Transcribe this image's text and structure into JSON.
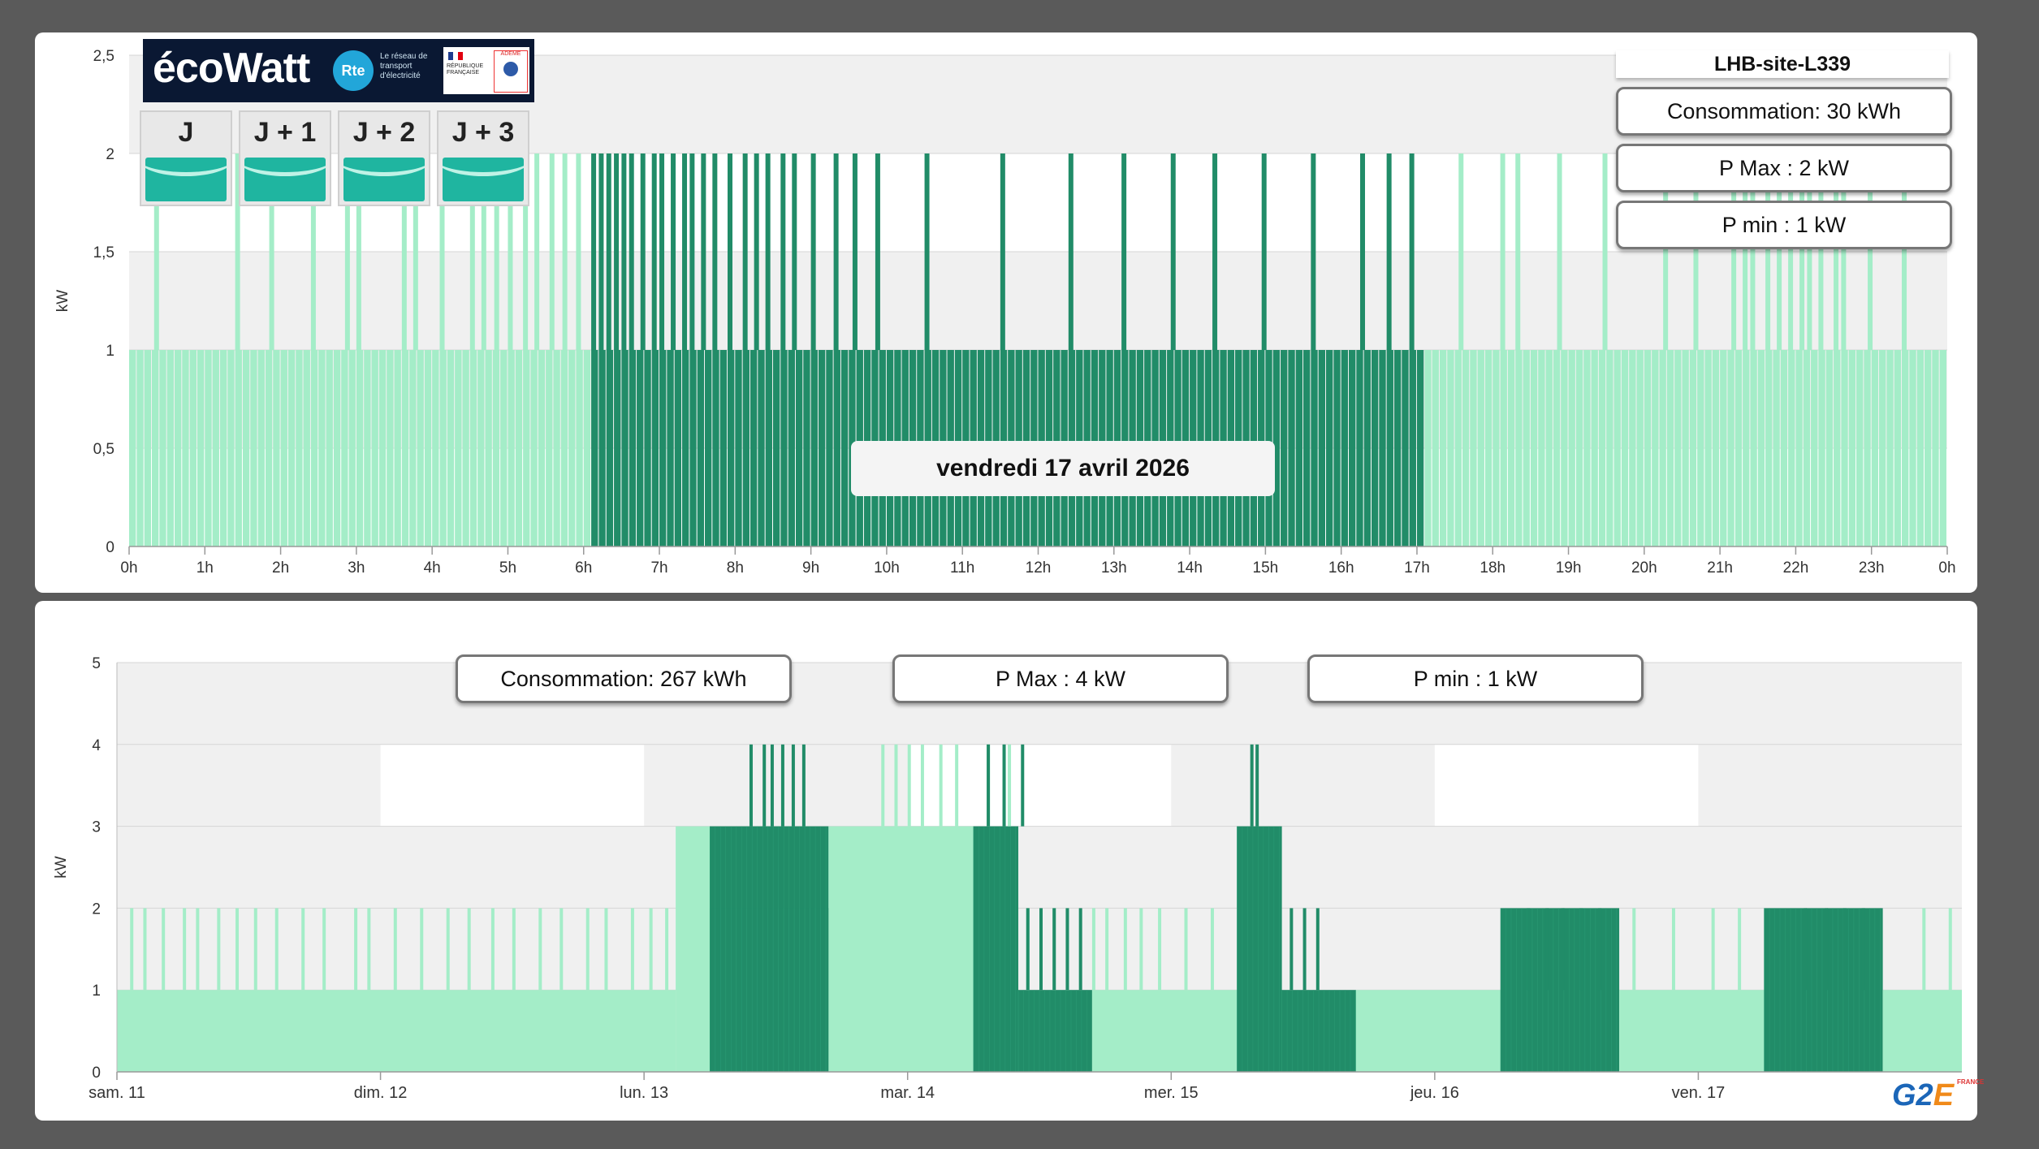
{
  "colors": {
    "light": "#a4edc8",
    "dark": "#218c68",
    "band": "#f0f0f0"
  },
  "ecowatt": {
    "brand": "écoWatt",
    "rte_logo": "Rte",
    "rte_text": "Le réseau de transport d'électricité",
    "gov_text": "RÉPUBLIQUE FRANÇAISE",
    "ademe": "ADEME",
    "days": [
      "J",
      "J + 1",
      "J + 2",
      "J + 3"
    ],
    "signal_color": "#1fb5a0"
  },
  "top": {
    "site": "LHB-site-L339",
    "consumption": "Consommation: 30 kWh",
    "pmax": "P Max :  2 kW",
    "pmin": "P min : 1 kW",
    "date": "vendredi 17 avril 2026"
  },
  "bottom": {
    "consumption": "Consommation: 267 kWh",
    "pmax": "P Max :  4 kW",
    "pmin": "P min : 1 kW"
  },
  "logo": {
    "text": "G2",
    "accent": "E",
    "tag": "FRANCE"
  },
  "chart_data": [
    {
      "type": "bar",
      "ylabel": "kW",
      "ylim": [
        0,
        2.5
      ],
      "y_ticks": [
        "0",
        "0,5",
        "1",
        "1,5",
        "2",
        "2,5"
      ],
      "x_ticks": [
        "0h",
        "1h",
        "2h",
        "3h",
        "4h",
        "5h",
        "6h",
        "7h",
        "8h",
        "9h",
        "10h",
        "11h",
        "12h",
        "13h",
        "14h",
        "15h",
        "16h",
        "17h",
        "18h",
        "19h",
        "20h",
        "21h",
        "22h",
        "23h",
        "0h"
      ],
      "x_unit": "hour of day",
      "base_power": 1,
      "peak_power": 2,
      "dark_period": [
        6,
        17
      ],
      "interval_hours": 0.1,
      "peaks_light": [
        0.33,
        1.4,
        1.85,
        2.4,
        2.85,
        3.0,
        3.6,
        3.75,
        4.1,
        4.5,
        4.65,
        4.82,
        5.0,
        5.2,
        5.35,
        5.55,
        5.72,
        5.9,
        17.55,
        18.1,
        18.3,
        18.85,
        19.45,
        20.25,
        20.65,
        21.15,
        21.3,
        21.4,
        21.6,
        21.75,
        21.9,
        22.05,
        22.15,
        22.3,
        22.5,
        22.6,
        22.95,
        23.4
      ],
      "peaks_dark": [
        6.1,
        6.2,
        6.3,
        6.4,
        6.5,
        6.6,
        6.75,
        6.9,
        7.0,
        7.15,
        7.3,
        7.4,
        7.55,
        7.7,
        7.9,
        8.1,
        8.25,
        8.4,
        8.6,
        8.75,
        9.0,
        9.3,
        9.55,
        9.85,
        10.5,
        11.5,
        12.4,
        13.1,
        13.75,
        14.3,
        14.95,
        15.6,
        16.25,
        16.6,
        16.9
      ],
      "white_bands": [
        [
          1.0,
          2.0
        ],
        [
          3.1,
          3.6
        ],
        [
          10.0,
          11.0
        ],
        [
          14.0,
          15.0
        ],
        [
          18.0,
          19.0
        ]
      ]
    },
    {
      "type": "bar",
      "ylabel": "kW",
      "ylim": [
        0,
        5
      ],
      "y_ticks": [
        "0",
        "1",
        "2",
        "3",
        "4",
        "5"
      ],
      "x_ticks": [
        "sam. 11",
        "dim. 12",
        "lun. 13",
        "mar. 14",
        "mer. 15",
        "jeu. 16",
        "ven. 17"
      ],
      "x_unit": "days from sam. 11",
      "x_range": [
        0,
        7.0
      ],
      "white_bands": [
        [
          1,
          2
        ],
        [
          5,
          6
        ]
      ],
      "light_base": 1,
      "segments": [
        {
          "start": 0.0,
          "end": 2.12,
          "level": 1,
          "color": "light"
        },
        {
          "start": 2.12,
          "end": 2.25,
          "level": 3,
          "color": "light"
        },
        {
          "start": 2.25,
          "end": 2.7,
          "level": 3,
          "color": "dark"
        },
        {
          "start": 2.25,
          "end": 2.7,
          "level": 2,
          "color": "dark"
        },
        {
          "start": 2.7,
          "end": 3.25,
          "level": 3,
          "color": "light"
        },
        {
          "start": 3.25,
          "end": 3.42,
          "level": 3,
          "color": "dark"
        },
        {
          "start": 3.42,
          "end": 3.7,
          "level": 1,
          "color": "dark"
        },
        {
          "start": 3.7,
          "end": 4.25,
          "level": 1,
          "color": "light"
        },
        {
          "start": 4.25,
          "end": 4.42,
          "level": 3,
          "color": "dark"
        },
        {
          "start": 4.42,
          "end": 4.7,
          "level": 1,
          "color": "dark"
        },
        {
          "start": 4.7,
          "end": 5.25,
          "level": 1,
          "color": "light"
        },
        {
          "start": 5.25,
          "end": 5.7,
          "level": 2,
          "color": "dark"
        },
        {
          "start": 5.7,
          "end": 6.25,
          "level": 1,
          "color": "light"
        },
        {
          "start": 6.25,
          "end": 6.7,
          "level": 2,
          "color": "dark"
        },
        {
          "start": 6.7,
          "end": 7.0,
          "level": 1,
          "color": "light"
        }
      ],
      "spikes_light_2kw": [
        0.05,
        0.1,
        0.17,
        0.25,
        0.3,
        0.38,
        0.45,
        0.52,
        0.6,
        0.7,
        0.78,
        0.9,
        0.95,
        1.05,
        1.15,
        1.25,
        1.33,
        1.42,
        1.5,
        1.6,
        1.68,
        1.78,
        1.85,
        1.95,
        2.02,
        2.08,
        3.45,
        3.55,
        3.6,
        3.7,
        3.75,
        3.82,
        3.88,
        3.95,
        4.05,
        4.15,
        5.75,
        5.9,
        6.05,
        6.15,
        6.85,
        6.95
      ],
      "spikes_light_4kw": [
        2.9,
        2.95,
        3.0,
        3.05,
        3.12,
        3.18,
        3.3,
        3.38
      ],
      "spikes_dark_4kw": [
        2.4,
        2.45,
        2.48,
        2.52,
        2.56,
        2.6,
        3.3,
        3.36,
        3.43,
        4.3,
        4.32
      ],
      "spikes_dark_2kw": [
        3.45,
        3.5,
        3.55,
        3.6,
        3.65,
        4.45,
        4.5,
        4.55,
        5.35,
        5.42,
        5.48,
        5.55,
        5.62,
        6.4,
        6.48,
        6.55,
        6.62
      ]
    }
  ]
}
